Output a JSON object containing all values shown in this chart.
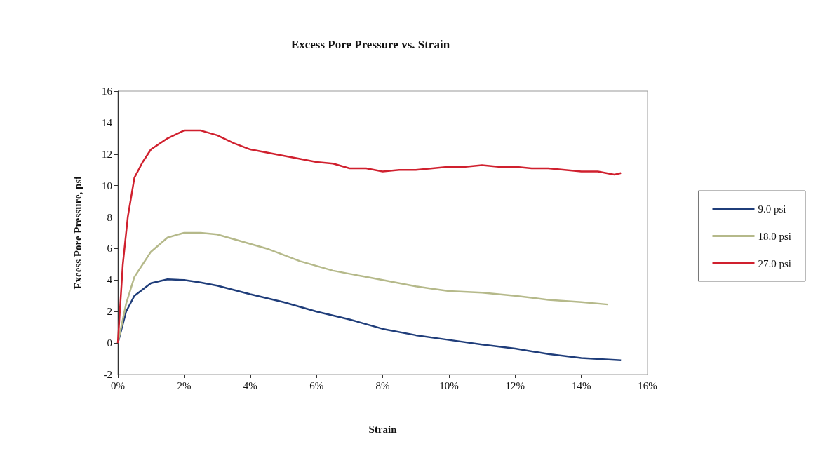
{
  "chart_data": {
    "type": "line",
    "title": "Excess Pore Pressure vs. Strain",
    "xlabel": "Strain",
    "ylabel": "Excess Pore Pressure, psi",
    "xlim": [
      0,
      16
    ],
    "xticks": [
      {
        "value": 0,
        "label": "0%"
      },
      {
        "value": 2,
        "label": "2%"
      },
      {
        "value": 4,
        "label": "4%"
      },
      {
        "value": 6,
        "label": "6%"
      },
      {
        "value": 8,
        "label": "8%"
      },
      {
        "value": 10,
        "label": "10%"
      },
      {
        "value": 12,
        "label": "12%"
      },
      {
        "value": 14,
        "label": "14%"
      },
      {
        "value": 16,
        "label": "16%"
      }
    ],
    "ylim": [
      -2,
      16
    ],
    "yticks": [
      -2,
      0,
      2,
      4,
      6,
      8,
      10,
      12,
      14,
      16
    ],
    "grid": false,
    "legend": "right",
    "marker": "none",
    "series": [
      {
        "name": "9.0 psi",
        "color": "#1f3d7a",
        "x": [
          0,
          0.25,
          0.5,
          1,
          1.5,
          2,
          2.5,
          3,
          4,
          5,
          6,
          7,
          8,
          9,
          10,
          11,
          12,
          13,
          14,
          15.2
        ],
        "values": [
          0,
          2.0,
          3.0,
          3.8,
          4.05,
          4.0,
          3.85,
          3.65,
          3.1,
          2.6,
          2.0,
          1.5,
          0.9,
          0.5,
          0.2,
          -0.1,
          -0.35,
          -0.7,
          -0.95,
          -1.1
        ]
      },
      {
        "name": "18.0 psi",
        "color": "#b5b98a",
        "x": [
          0,
          0.25,
          0.5,
          1,
          1.5,
          2,
          2.5,
          3,
          3.5,
          4,
          4.5,
          5,
          5.5,
          6,
          6.5,
          7,
          7.5,
          8,
          8.5,
          9,
          9.5,
          10,
          11,
          12,
          13,
          14,
          14.8
        ],
        "values": [
          0,
          2.5,
          4.2,
          5.8,
          6.7,
          7.0,
          7.0,
          6.9,
          6.6,
          6.3,
          6.0,
          5.6,
          5.2,
          4.9,
          4.6,
          4.4,
          4.2,
          4.0,
          3.8,
          3.6,
          3.45,
          3.3,
          3.2,
          3.0,
          2.75,
          2.6,
          2.45
        ]
      },
      {
        "name": "27.0 psi",
        "color": "#d0202e",
        "x": [
          0,
          0.15,
          0.3,
          0.5,
          0.75,
          1,
          1.5,
          2,
          2.5,
          3,
          3.5,
          4,
          4.5,
          5,
          5.5,
          6,
          6.5,
          7,
          7.5,
          8,
          8.5,
          9,
          9.5,
          10,
          10.5,
          11,
          11.5,
          12,
          12.5,
          13,
          13.5,
          14,
          14.5,
          15,
          15.2
        ],
        "values": [
          0,
          5,
          8,
          10.5,
          11.5,
          12.3,
          13.0,
          13.5,
          13.5,
          13.2,
          12.7,
          12.3,
          12.1,
          11.9,
          11.7,
          11.5,
          11.4,
          11.1,
          11.1,
          10.9,
          11.0,
          11.0,
          11.1,
          11.2,
          11.2,
          11.3,
          11.2,
          11.2,
          11.1,
          11.1,
          11.0,
          10.9,
          10.9,
          10.7,
          10.8
        ]
      }
    ]
  }
}
